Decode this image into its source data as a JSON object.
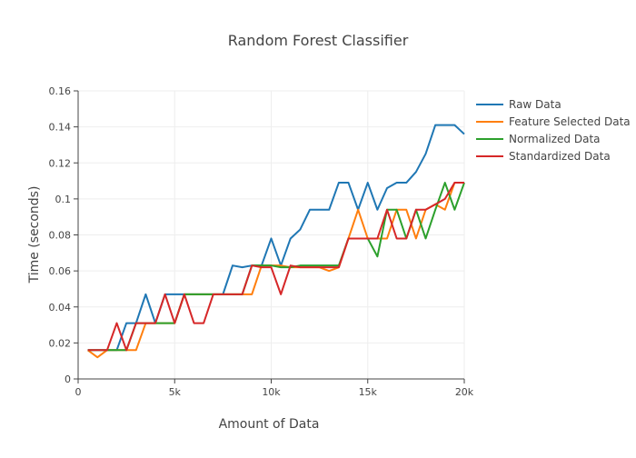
{
  "chart_data": {
    "type": "line",
    "title": "Random Forest Classifier",
    "xlabel": "Amount of Data",
    "ylabel": "Time (seconds)",
    "xlim": [
      0,
      20000
    ],
    "ylim": [
      0,
      0.16
    ],
    "x_ticks": [
      {
        "value": 0,
        "label": "0"
      },
      {
        "value": 5000,
        "label": "5k"
      },
      {
        "value": 10000,
        "label": "10k"
      },
      {
        "value": 15000,
        "label": "15k"
      },
      {
        "value": 20000,
        "label": "20k"
      }
    ],
    "y_ticks": [
      {
        "value": 0,
        "label": "0"
      },
      {
        "value": 0.02,
        "label": "0.02"
      },
      {
        "value": 0.04,
        "label": "0.04"
      },
      {
        "value": 0.06,
        "label": "0.06"
      },
      {
        "value": 0.08,
        "label": "0.08"
      },
      {
        "value": 0.1,
        "label": "0.1"
      },
      {
        "value": 0.12,
        "label": "0.12"
      },
      {
        "value": 0.14,
        "label": "0.14"
      },
      {
        "value": 0.16,
        "label": "0.16"
      }
    ],
    "grid": true,
    "legend_position": "right",
    "x": [
      500,
      1000,
      1500,
      2000,
      2500,
      3000,
      3500,
      4000,
      4500,
      5000,
      5500,
      6000,
      6500,
      7000,
      7500,
      8000,
      8500,
      9000,
      9500,
      10000,
      10500,
      11000,
      11500,
      12000,
      12500,
      13000,
      13500,
      14000,
      14500,
      15000,
      15500,
      16000,
      16500,
      17000,
      17500,
      18000,
      18500,
      19000,
      19500,
      20000
    ],
    "series": [
      {
        "name": "Raw Data",
        "color": "#1f77b4",
        "values": [
          0.016,
          0.016,
          0.016,
          0.016,
          0.031,
          0.031,
          0.047,
          0.031,
          0.047,
          0.047,
          0.047,
          0.047,
          0.047,
          0.047,
          0.047,
          0.063,
          0.062,
          0.063,
          0.063,
          0.078,
          0.063,
          0.078,
          0.083,
          0.094,
          0.094,
          0.094,
          0.109,
          0.109,
          0.094,
          0.109,
          0.094,
          0.106,
          0.109,
          0.109,
          0.115,
          0.125,
          0.141,
          0.141,
          0.141,
          0.136
        ]
      },
      {
        "name": "Feature Selected Data",
        "color": "#ff7f0e",
        "values": [
          0.016,
          0.012,
          0.016,
          0.016,
          0.016,
          0.016,
          0.031,
          0.031,
          0.031,
          0.031,
          0.047,
          0.047,
          0.047,
          0.047,
          0.047,
          0.047,
          0.047,
          0.047,
          0.063,
          0.063,
          0.063,
          0.062,
          0.062,
          0.062,
          0.062,
          0.06,
          0.062,
          0.078,
          0.094,
          0.078,
          0.078,
          0.078,
          0.094,
          0.094,
          0.078,
          0.094,
          0.097,
          0.094,
          0.109,
          0.109
        ]
      },
      {
        "name": "Normalized Data",
        "color": "#2ca02c",
        "values": [
          0.016,
          0.016,
          0.016,
          0.016,
          0.016,
          0.031,
          0.031,
          0.031,
          0.031,
          0.031,
          0.047,
          0.047,
          0.047,
          0.047,
          0.047,
          0.047,
          0.047,
          0.063,
          0.063,
          0.063,
          0.062,
          0.062,
          0.063,
          0.063,
          0.063,
          0.063,
          0.063,
          0.078,
          0.078,
          0.078,
          0.068,
          0.094,
          0.094,
          0.078,
          0.094,
          0.078,
          0.094,
          0.109,
          0.094,
          0.109
        ]
      },
      {
        "name": "Standardized Data",
        "color": "#d62728",
        "values": [
          0.016,
          0.016,
          0.016,
          0.031,
          0.016,
          0.031,
          0.031,
          0.031,
          0.047,
          0.031,
          0.047,
          0.031,
          0.031,
          0.047,
          0.047,
          0.047,
          0.047,
          0.063,
          0.062,
          0.062,
          0.047,
          0.063,
          0.062,
          0.062,
          0.062,
          0.062,
          0.062,
          0.078,
          0.078,
          0.078,
          0.078,
          0.094,
          0.078,
          0.078,
          0.094,
          0.094,
          0.097,
          0.1,
          0.109,
          0.109
        ]
      }
    ]
  }
}
